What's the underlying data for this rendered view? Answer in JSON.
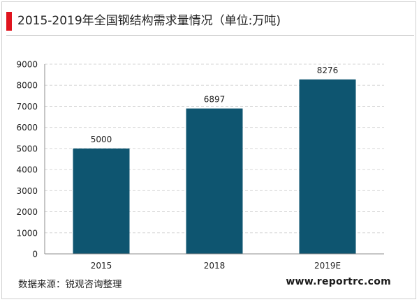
{
  "header": {
    "title": "2015-2019年全国钢结构需求量情况（单位:万吨)",
    "accent_color": "#e0141e"
  },
  "chart_data": {
    "type": "bar",
    "title": "",
    "categories": [
      "2015",
      "2018",
      "2019E"
    ],
    "values": [
      5000,
      6897,
      8276
    ],
    "data_labels": [
      "5000",
      "6897",
      "8276"
    ],
    "ylim": [
      0,
      9000
    ],
    "yticks": [
      "0",
      "1000",
      "2000",
      "3000",
      "4000",
      "5000",
      "6000",
      "7000",
      "8000",
      "9000"
    ],
    "xlabel": "",
    "ylabel": "",
    "grid": "horizontal dashed",
    "bar_color": "#0e5570"
  },
  "footer": {
    "source": "数据来源：锐观咨询整理",
    "website": "www.reportrc.com"
  }
}
